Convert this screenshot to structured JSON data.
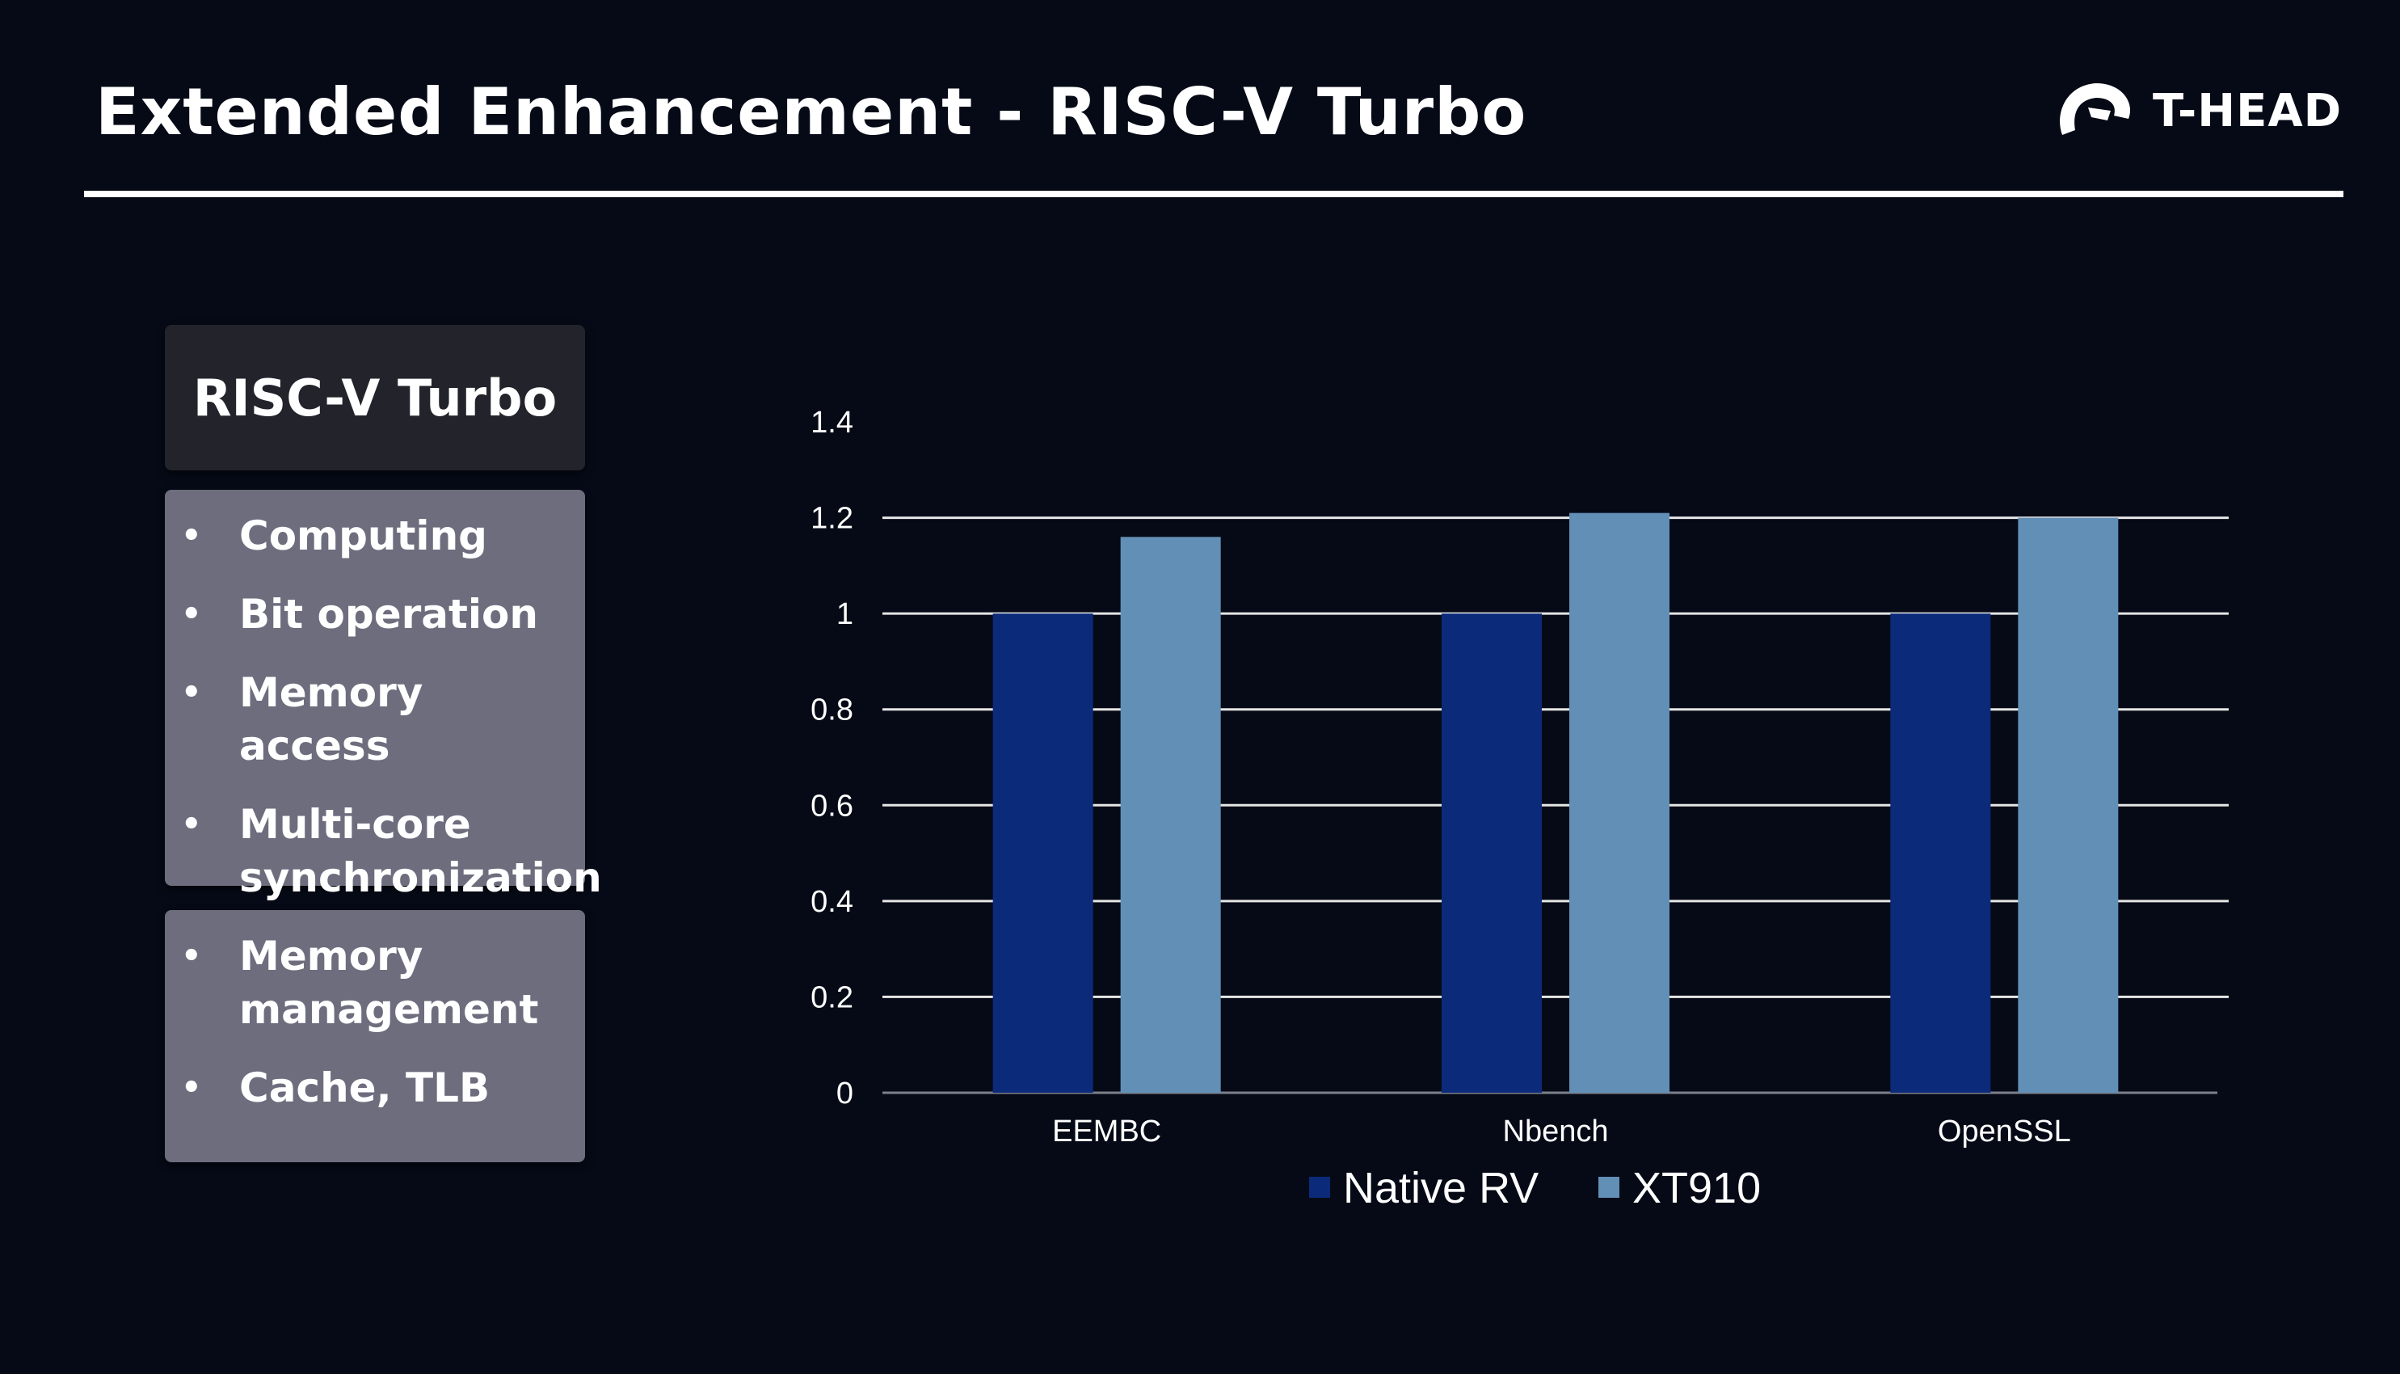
{
  "slide": {
    "title": "Extended Enhancement - RISC-V Turbo",
    "logo_text": "T-HEAD"
  },
  "panel": {
    "header": "RISC-V Turbo",
    "group1": [
      "Computing",
      "Bit operation",
      "Memory access",
      "Multi-core synchronization"
    ],
    "group2": [
      "Memory management",
      "Cache, TLB"
    ],
    "bullet": "•"
  },
  "chart_data": {
    "type": "bar",
    "categories": [
      "EEMBC",
      "Nbench",
      "OpenSSL"
    ],
    "series": [
      {
        "name": "Native RV",
        "values": [
          1.0,
          1.0,
          1.0
        ],
        "color": "#0c2a7a"
      },
      {
        "name": "XT910",
        "values": [
          1.16,
          1.21,
          1.2
        ],
        "color": "#628fb6"
      }
    ],
    "ylim": [
      0,
      1.4
    ],
    "yticks": [
      "0",
      "0.2",
      "0.4",
      "0.6",
      "0.8",
      "1",
      "1.2",
      "1.4"
    ],
    "grid": true,
    "legend": "bottom"
  }
}
